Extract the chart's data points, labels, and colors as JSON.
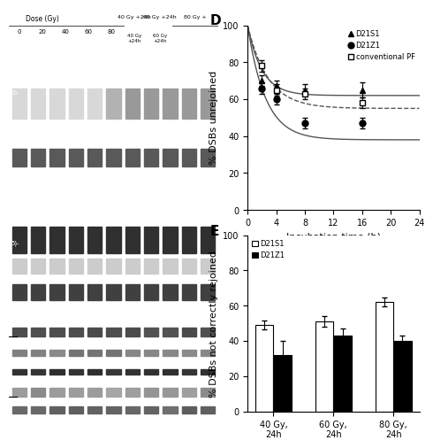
{
  "panel_D": {
    "title": "D",
    "xlabel": "Incubation time (h)",
    "ylabel": "% DSBs unrejoined",
    "xlim": [
      0,
      24
    ],
    "ylim": [
      0,
      100
    ],
    "xticks": [
      0,
      4,
      8,
      12,
      16,
      20,
      24
    ],
    "yticks": [
      0,
      20,
      40,
      60,
      80,
      100
    ],
    "D21S1": {
      "x": [
        2,
        4,
        8,
        16
      ],
      "y": [
        70,
        67,
        65,
        65
      ],
      "yerr": [
        3,
        3,
        3,
        4
      ],
      "marker": "^",
      "color": "black",
      "label": "D21S1"
    },
    "D21Z1": {
      "x": [
        2,
        4,
        8,
        16
      ],
      "y": [
        66,
        60,
        47,
        47
      ],
      "yerr": [
        3,
        3,
        3,
        3
      ],
      "marker": "o",
      "color": "black",
      "label": "D21Z1"
    },
    "conventional": {
      "x": [
        2,
        4,
        8,
        16
      ],
      "y": [
        78,
        65,
        63,
        58
      ],
      "yerr": [
        3,
        3,
        3,
        3
      ],
      "marker": "s",
      "color": "black",
      "label": "conventional PF",
      "fillstyle": "none"
    },
    "fit_D21S1": {
      "plateau": 62,
      "decay": 0.5
    },
    "fit_D21Z1": {
      "plateau": 38,
      "decay": 0.4
    },
    "fit_conventional": {
      "plateau": 55,
      "decay": 0.35
    }
  },
  "panel_E": {
    "title": "E",
    "ylabel": "% DSBs not correctly rejoined",
    "ylim": [
      0,
      100
    ],
    "yticks": [
      0,
      20,
      40,
      60,
      80,
      100
    ],
    "categories": [
      "40 Gy,\n24h",
      "60 Gy,\n24h",
      "80 Gy,\n24h"
    ],
    "D21S1_values": [
      49,
      51,
      62
    ],
    "D21S1_err": [
      2.5,
      3,
      2.5
    ],
    "D21Z1_values": [
      32,
      43,
      40
    ],
    "D21Z1_err": [
      8,
      4,
      3
    ],
    "bar_width": 0.3,
    "D21S1_color": "white",
    "D21Z1_color": "black",
    "edge_color": "black"
  },
  "gel_top": {
    "bg_color": "#1a1a1a",
    "band_color_bright": "#e0e0e0",
    "band_color_mid": "#aaaaaa",
    "n_lanes": 11,
    "header_bg": "#f0f0f0"
  },
  "gel_mid": {
    "bg_color": "#888888"
  },
  "gel_bot": {
    "bg_color": "#999999"
  },
  "background_color": "white",
  "font_size": 8,
  "label_font_size": 7
}
